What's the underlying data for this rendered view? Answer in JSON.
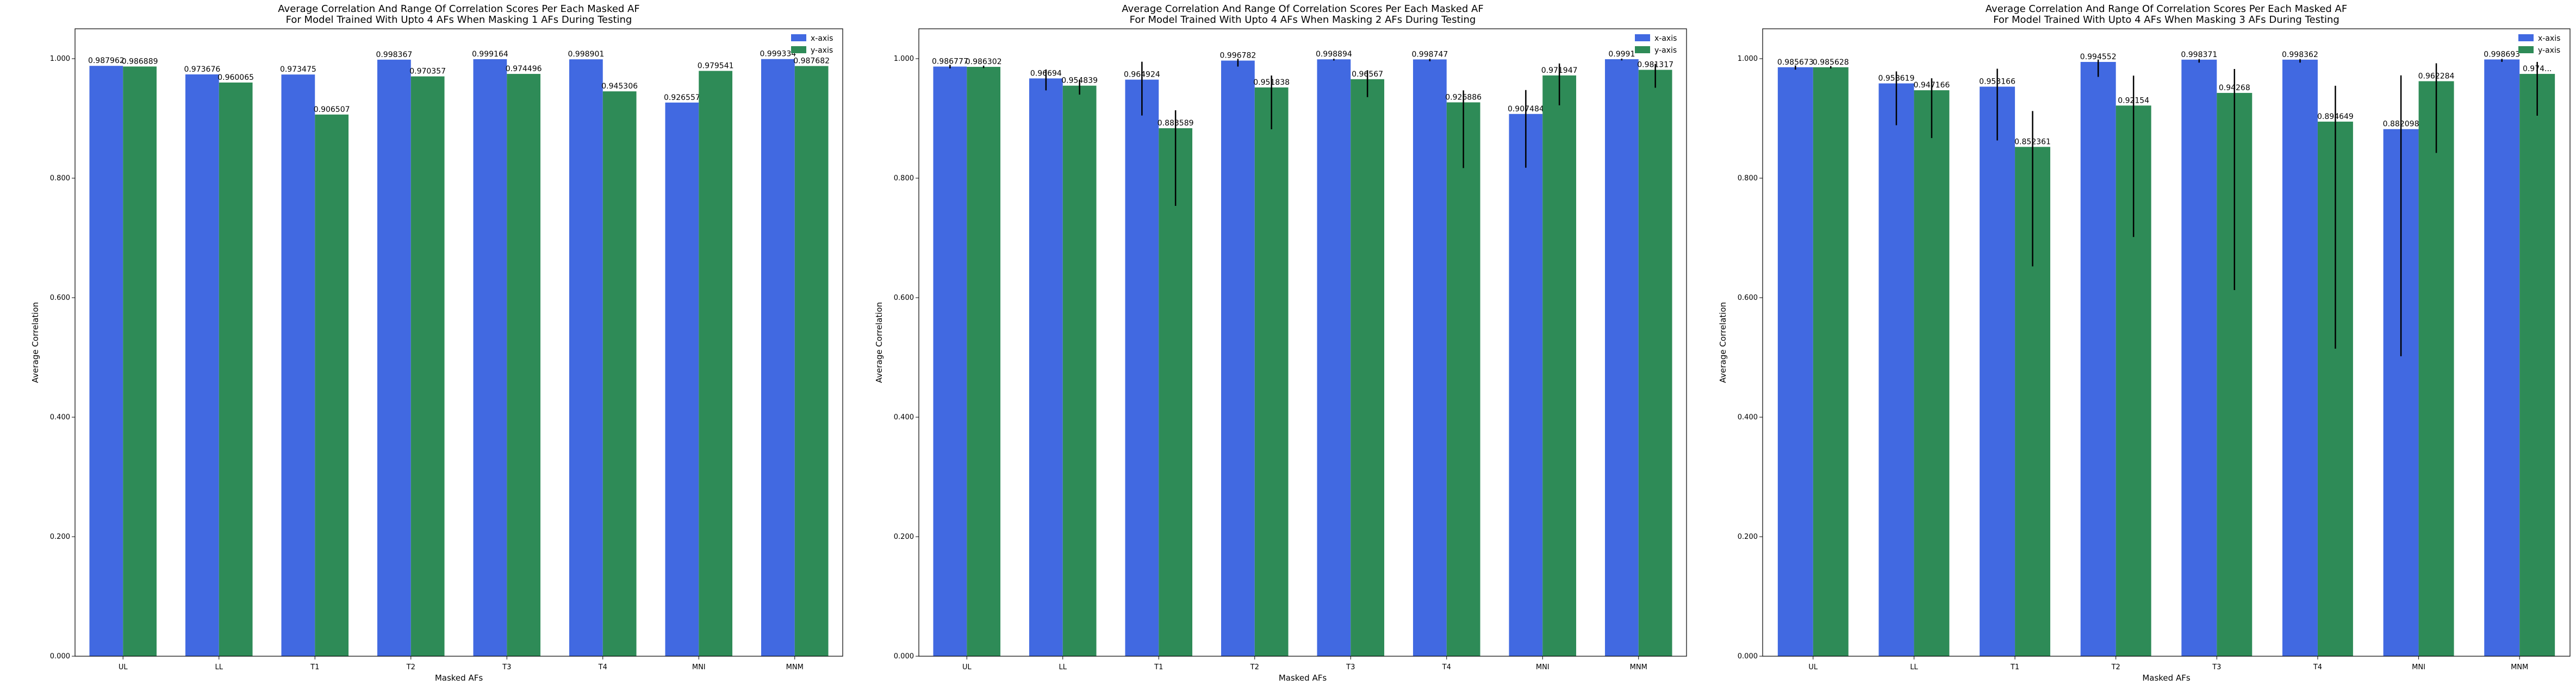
{
  "colors": {
    "x_axis": "#4169e1",
    "y_axis": "#2e8b57",
    "error_bar": "#000000",
    "frame": "#000000"
  },
  "chart_data": [
    {
      "type": "bar",
      "title": "Average Correlation And Range Of Correlation Scores Per Each Masked AF\nFor Model Trained With Upto 4 AFs When Masking 1 AFs During Testing",
      "xlabel": "Masked AFs",
      "ylabel": "Average Correlation",
      "ylim": [
        0,
        1.05
      ],
      "yticks": [
        "0.000",
        "0.200",
        "0.400",
        "0.600",
        "0.800",
        "1.000"
      ],
      "categories": [
        "UL",
        "LL",
        "T1",
        "T2",
        "T3",
        "T4",
        "MNI",
        "MNM"
      ],
      "legend": "top-right",
      "series": [
        {
          "name": "x-axis",
          "color": "#4169e1",
          "values": [
            0.987962,
            0.973676,
            0.973475,
            0.998367,
            0.999164,
            0.998901,
            0.926557,
            0.999334
          ],
          "labels": [
            "0.987962",
            "0.973676",
            "0.973475",
            "0.998367",
            "0.999164",
            "0.998901",
            "0.926557",
            "0.999334"
          ],
          "err_low": [
            0,
            0,
            0,
            0,
            0,
            0,
            0,
            0
          ],
          "err_high": [
            0,
            0,
            0,
            0,
            0,
            0,
            0,
            0
          ]
        },
        {
          "name": "y-axis",
          "color": "#2e8b57",
          "values": [
            0.986889,
            0.960065,
            0.906507,
            0.970357,
            0.974496,
            0.945306,
            0.979541,
            0.987682
          ],
          "labels": [
            "0.986889",
            "0.960065",
            "0.906507",
            "0.970357",
            "0.974496",
            "0.945306",
            "0.979541",
            "0.987682"
          ],
          "err_low": [
            0,
            0,
            0,
            0,
            0,
            0,
            0,
            0
          ],
          "err_high": [
            0,
            0,
            0,
            0,
            0,
            0,
            0,
            0
          ]
        }
      ]
    },
    {
      "type": "bar",
      "title": "Average Correlation And Range Of Correlation Scores Per Each Masked AF\nFor Model Trained With Upto 4 AFs When Masking 2 AFs During Testing",
      "xlabel": "Masked AFs",
      "ylabel": "Average Correlation",
      "ylim": [
        0,
        1.05
      ],
      "yticks": [
        "0.000",
        "0.200",
        "0.400",
        "0.600",
        "0.800",
        "1.000"
      ],
      "categories": [
        "UL",
        "LL",
        "T1",
        "T2",
        "T3",
        "T4",
        "MNI",
        "MNM"
      ],
      "legend": "top-right",
      "series": [
        {
          "name": "x-axis",
          "color": "#4169e1",
          "values": [
            0.986777,
            0.96694,
            0.964924,
            0.996782,
            0.998894,
            0.998747,
            0.907484,
            0.9991
          ],
          "labels": [
            "0.986777",
            "0.96694",
            "0.964924",
            "0.996782",
            "0.998894",
            "0.998747",
            "0.907484",
            "0.9991"
          ],
          "err_low": [
            0.003,
            0.02,
            0.06,
            0.01,
            0.002,
            0.003,
            0.09,
            0.002
          ],
          "err_high": [
            0.003,
            0.015,
            0.03,
            0.003,
            0.001,
            0.001,
            0.04,
            0.001
          ]
        },
        {
          "name": "y-axis",
          "color": "#2e8b57",
          "values": [
            0.986302,
            0.954839,
            0.883589,
            0.951838,
            0.96567,
            0.926886,
            0.971947,
            0.981317
          ],
          "labels": [
            "0.986302",
            "0.954839",
            "0.883589",
            "0.951838",
            "0.96567",
            "0.926886",
            "0.971947",
            "0.981317"
          ],
          "err_low": [
            0.002,
            0.015,
            0.13,
            0.07,
            0.03,
            0.11,
            0.05,
            0.03
          ],
          "err_high": [
            0.002,
            0.01,
            0.03,
            0.02,
            0.015,
            0.02,
            0.02,
            0.01
          ]
        }
      ]
    },
    {
      "type": "bar",
      "title": "Average Correlation And Range Of Correlation Scores Per Each Masked AF\nFor Model Trained With Upto 4 AFs When Masking 3 AFs During Testing",
      "xlabel": "Masked AFs",
      "ylabel": "Average Correlation",
      "ylim": [
        0,
        1.05
      ],
      "yticks": [
        "0.000",
        "0.200",
        "0.400",
        "0.600",
        "0.800",
        "1.000"
      ],
      "categories": [
        "UL",
        "LL",
        "T1",
        "T2",
        "T3",
        "T4",
        "MNI",
        "MNM"
      ],
      "legend": "top-right",
      "series": [
        {
          "name": "x-axis",
          "color": "#4169e1",
          "values": [
            0.985673,
            0.958619,
            0.953166,
            0.994552,
            0.998371,
            0.998362,
            0.882098,
            0.998693
          ],
          "labels": [
            "0.985673",
            "0.958619",
            "0.953166",
            "0.994552",
            "0.998371",
            "0.998362",
            "0.882098",
            "0.998693"
          ],
          "err_low": [
            0.004,
            0.07,
            0.09,
            0.025,
            0.005,
            0.005,
            0.38,
            0.004
          ],
          "err_high": [
            0.003,
            0.02,
            0.03,
            0.004,
            0.001,
            0.001,
            0.09,
            0.001
          ]
        },
        {
          "name": "y-axis",
          "color": "#2e8b57",
          "values": [
            0.985628,
            0.947166,
            0.852361,
            0.92154,
            0.94268,
            0.894649,
            0.962284,
            0.9745
          ],
          "labels": [
            "0.985628",
            "0.947166",
            "0.852361",
            "0.92154",
            "0.94268",
            "0.894649",
            "0.962284",
            "0.974..."
          ],
          "err_low": [
            0.002,
            0.08,
            0.2,
            0.22,
            0.33,
            0.38,
            0.12,
            0.07
          ],
          "err_high": [
            0.002,
            0.02,
            0.06,
            0.05,
            0.04,
            0.06,
            0.03,
            0.02
          ]
        }
      ]
    }
  ]
}
